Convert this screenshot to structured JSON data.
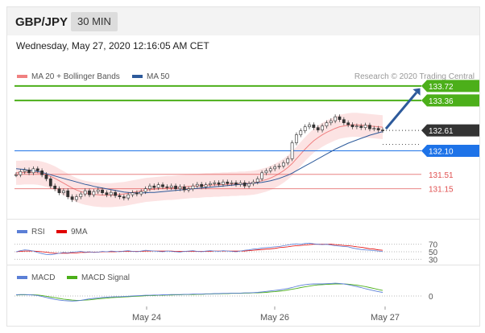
{
  "header": {
    "pair": "GBP/JPY",
    "timeframe": "30 MIN"
  },
  "datetime": "Wednesday, May 27, 2020 12:16:05 AM CET",
  "credit": "Research © 2020 Trading Central",
  "legends": {
    "main": [
      {
        "label": "MA 20 + Bollinger Bands",
        "color": "#f08080"
      },
      {
        "label": "MA 50",
        "color": "#2d5a9b"
      }
    ],
    "rsi": [
      {
        "label": "RSI",
        "color": "#5b7fd6"
      },
      {
        "label": "9MA",
        "color": "#e00000"
      }
    ],
    "macd": [
      {
        "label": "MACD",
        "color": "#5b7fd6"
      },
      {
        "label": "MACD Signal",
        "color": "#4caf1a"
      }
    ]
  },
  "colors": {
    "resistance": "#4caf1a",
    "support": "#e05050",
    "pivot": "#1e73e8",
    "current": "#333333",
    "arrow": "#2d5a9b"
  },
  "chart_data": [
    {
      "type": "line",
      "name": "price",
      "x_ticks": [
        "May 24",
        "May 26",
        "May 27"
      ],
      "ylim": [
        130.5,
        134.0
      ],
      "levels": [
        {
          "value": 133.72,
          "label": "133.72",
          "kind": "resistance"
        },
        {
          "value": 133.36,
          "label": "133.36",
          "kind": "resistance"
        },
        {
          "value": 132.61,
          "label": "132.61",
          "kind": "current"
        },
        {
          "value": 132.1,
          "label": "132.10",
          "kind": "pivot"
        },
        {
          "value": 131.51,
          "label": "131.51",
          "kind": "support"
        },
        {
          "value": 131.15,
          "label": "131.15",
          "kind": "support"
        }
      ],
      "close": [
        131.5,
        131.58,
        131.62,
        131.55,
        131.65,
        131.6,
        131.5,
        131.4,
        131.22,
        131.15,
        131.05,
        131.1,
        130.95,
        130.88,
        130.95,
        131.02,
        131.1,
        131.0,
        131.08,
        131.12,
        131.05,
        131.0,
        131.06,
        130.98,
        130.95,
        130.92,
        131.0,
        131.05,
        131.02,
        131.08,
        131.15,
        131.22,
        131.18,
        131.25,
        131.2,
        131.18,
        131.22,
        131.15,
        131.2,
        131.12,
        131.15,
        131.22,
        131.26,
        131.2,
        131.25,
        131.28,
        131.3,
        131.26,
        131.32,
        131.28,
        131.3,
        131.26,
        131.3,
        131.22,
        131.28,
        131.32,
        131.4,
        131.55,
        131.6,
        131.65,
        131.7,
        131.72,
        131.8,
        131.9,
        132.3,
        132.5,
        132.6,
        132.7,
        132.75,
        132.68,
        132.62,
        132.72,
        132.8,
        132.85,
        132.95,
        132.88,
        132.8,
        132.75,
        132.7,
        132.72,
        132.68,
        132.74,
        132.65,
        132.66,
        132.62,
        132.61
      ],
      "ma50": [
        131.65,
        131.64,
        131.63,
        131.61,
        131.6,
        131.58,
        131.56,
        131.53,
        131.5,
        131.47,
        131.44,
        131.41,
        131.38,
        131.35,
        131.32,
        131.29,
        131.26,
        131.24,
        131.21,
        131.19,
        131.17,
        131.15,
        131.13,
        131.11,
        131.09,
        131.07,
        131.06,
        131.05,
        131.05,
        131.05,
        131.05,
        131.06,
        131.06,
        131.07,
        131.08,
        131.09,
        131.1,
        131.11,
        131.12,
        131.13,
        131.14,
        131.15,
        131.16,
        131.17,
        131.18,
        131.19,
        131.2,
        131.21,
        131.22,
        131.23,
        131.24,
        131.25,
        131.26,
        131.27,
        131.28,
        131.29,
        131.3,
        131.31,
        131.33,
        131.35,
        131.38,
        131.41,
        131.45,
        131.49,
        131.54,
        131.6,
        131.66,
        131.72,
        131.78,
        131.84,
        131.9,
        131.96,
        132.02,
        132.08,
        132.14,
        132.19,
        132.24,
        132.29,
        132.33,
        132.37,
        132.41,
        132.45,
        132.49,
        132.52,
        132.55,
        132.58
      ],
      "ma20": [
        131.55,
        131.55,
        131.56,
        131.56,
        131.56,
        131.55,
        131.53,
        131.5,
        131.46,
        131.41,
        131.35,
        131.29,
        131.23,
        131.17,
        131.12,
        131.08,
        131.05,
        131.03,
        131.01,
        131.0,
        130.99,
        130.99,
        130.99,
        131.0,
        131.01,
        131.02,
        131.04,
        131.06,
        131.08,
        131.1,
        131.12,
        131.13,
        131.14,
        131.15,
        131.16,
        131.17,
        131.17,
        131.18,
        131.19,
        131.2,
        131.21,
        131.22,
        131.22,
        131.23,
        131.24,
        131.24,
        131.25,
        131.25,
        131.26,
        131.26,
        131.27,
        131.27,
        131.28,
        131.28,
        131.29,
        131.3,
        131.32,
        131.35,
        131.38,
        131.42,
        131.47,
        131.53,
        131.6,
        131.68,
        131.78,
        131.9,
        132.02,
        132.14,
        132.25,
        132.35,
        132.43,
        132.5,
        132.56,
        132.61,
        132.66,
        132.7,
        132.72,
        132.74,
        132.75,
        132.75,
        132.74,
        132.73,
        132.72,
        132.71,
        132.7,
        132.69
      ],
      "band_width": 0.3,
      "forecast": [
        132.61,
        133.72
      ]
    },
    {
      "type": "line",
      "name": "RSI",
      "ylim": [
        20,
        80
      ],
      "ticks": [
        "70",
        "50",
        "30"
      ],
      "rsi": [
        50,
        53,
        55,
        54,
        52,
        48,
        45,
        43,
        42,
        44,
        46,
        48,
        47,
        49,
        50,
        51,
        49,
        50,
        48,
        49,
        51,
        50,
        52,
        51,
        50,
        52,
        53,
        51,
        50,
        52,
        54,
        53,
        52,
        51,
        50,
        52,
        51,
        50,
        49,
        51,
        52,
        53,
        51,
        50,
        52,
        53,
        52,
        51,
        53,
        52,
        51,
        50,
        52,
        54,
        55,
        57,
        58,
        60,
        61,
        62,
        63,
        64,
        66,
        68,
        70,
        71,
        70,
        72,
        73,
        71,
        70,
        69,
        70,
        68,
        66,
        65,
        64,
        63,
        60,
        58,
        56,
        55,
        54,
        53,
        52,
        51
      ],
      "ma9": [
        50,
        51,
        52,
        52,
        52,
        51,
        50,
        49,
        47,
        46,
        46,
        46,
        46,
        47,
        47,
        48,
        48,
        49,
        49,
        49,
        50,
        50,
        50,
        50,
        51,
        51,
        51,
        51,
        51,
        51,
        52,
        52,
        52,
        52,
        52,
        52,
        52,
        51,
        51,
        51,
        51,
        51,
        51,
        51,
        51,
        51,
        52,
        52,
        52,
        52,
        52,
        52,
        52,
        52,
        53,
        54,
        55,
        56,
        57,
        58,
        59,
        61,
        62,
        63,
        65,
        66,
        67,
        68,
        69,
        70,
        70,
        70,
        70,
        70,
        69,
        68,
        67,
        66,
        65,
        63,
        62,
        60,
        58,
        57,
        55,
        54
      ]
    },
    {
      "type": "line",
      "name": "MACD",
      "zero_label": "0",
      "ylim": [
        -0.5,
        0.7
      ],
      "macd": [
        0.05,
        0.06,
        0.06,
        0.05,
        0.04,
        0.02,
        -0.02,
        -0.06,
        -0.1,
        -0.14,
        -0.17,
        -0.19,
        -0.2,
        -0.21,
        -0.2,
        -0.18,
        -0.15,
        -0.12,
        -0.1,
        -0.08,
        -0.06,
        -0.05,
        -0.04,
        -0.03,
        -0.03,
        -0.02,
        -0.01,
        0.0,
        0.01,
        0.02,
        0.03,
        0.03,
        0.04,
        0.04,
        0.05,
        0.05,
        0.06,
        0.06,
        0.06,
        0.07,
        0.07,
        0.08,
        0.08,
        0.08,
        0.09,
        0.09,
        0.1,
        0.1,
        0.11,
        0.11,
        0.12,
        0.12,
        0.12,
        0.13,
        0.13,
        0.14,
        0.15,
        0.17,
        0.19,
        0.21,
        0.23,
        0.25,
        0.28,
        0.31,
        0.35,
        0.4,
        0.44,
        0.47,
        0.49,
        0.5,
        0.5,
        0.5,
        0.51,
        0.52,
        0.53,
        0.52,
        0.5,
        0.47,
        0.43,
        0.39,
        0.35,
        0.3,
        0.26,
        0.22,
        0.18,
        0.15
      ],
      "signal": [
        0.04,
        0.05,
        0.05,
        0.05,
        0.05,
        0.04,
        0.02,
        -0.01,
        -0.04,
        -0.07,
        -0.1,
        -0.13,
        -0.15,
        -0.17,
        -0.18,
        -0.18,
        -0.17,
        -0.16,
        -0.14,
        -0.12,
        -0.1,
        -0.09,
        -0.07,
        -0.06,
        -0.05,
        -0.04,
        -0.03,
        -0.02,
        -0.01,
        0.0,
        0.01,
        0.02,
        0.02,
        0.03,
        0.03,
        0.04,
        0.04,
        0.05,
        0.05,
        0.06,
        0.06,
        0.06,
        0.07,
        0.07,
        0.08,
        0.08,
        0.09,
        0.09,
        0.1,
        0.1,
        0.11,
        0.11,
        0.11,
        0.12,
        0.12,
        0.13,
        0.13,
        0.14,
        0.15,
        0.17,
        0.18,
        0.2,
        0.22,
        0.25,
        0.28,
        0.31,
        0.35,
        0.38,
        0.41,
        0.44,
        0.46,
        0.47,
        0.48,
        0.49,
        0.5,
        0.5,
        0.5,
        0.49,
        0.47,
        0.45,
        0.42,
        0.39,
        0.35,
        0.31,
        0.27,
        0.23
      ]
    }
  ]
}
